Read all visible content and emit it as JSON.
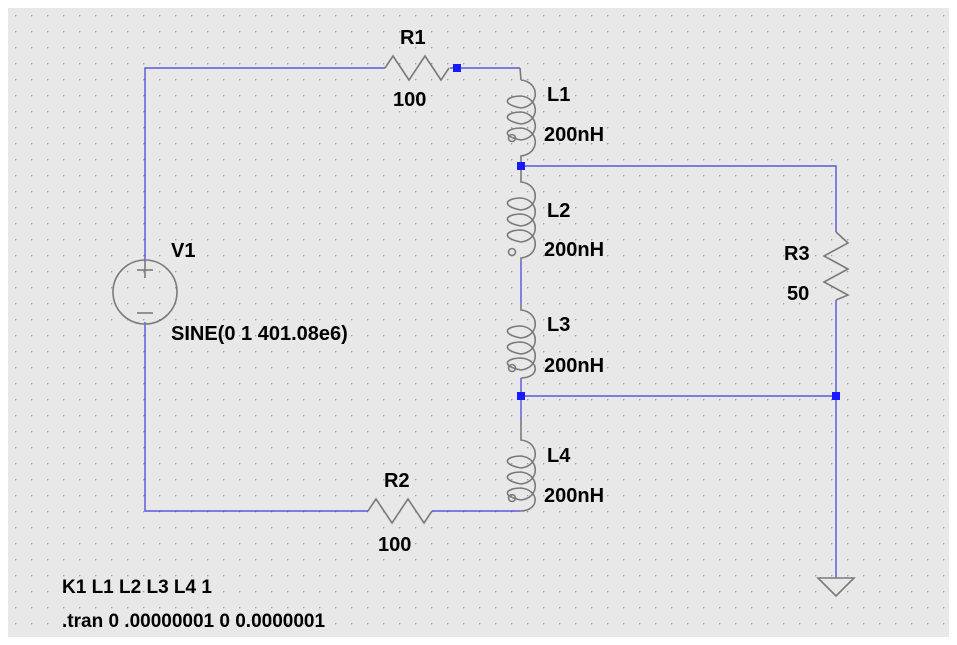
{
  "schematic": {
    "colors": {
      "background": "#e8e8e8",
      "grid_dot": "#9a9aa0",
      "wire": "#3b3bd9",
      "component": "#7a7a7a",
      "junction": "#1a1aff",
      "text": "#000000"
    },
    "components": {
      "r1": {
        "name": "R1",
        "value": "100"
      },
      "r2": {
        "name": "R2",
        "value": "100"
      },
      "r3": {
        "name": "R3",
        "value": "50"
      },
      "l1": {
        "name": "L1",
        "value": "200nH"
      },
      "l2": {
        "name": "L2",
        "value": "200nH"
      },
      "l3": {
        "name": "L3",
        "value": "200nH"
      },
      "l4": {
        "name": "L4",
        "value": "200nH"
      },
      "v1": {
        "name": "V1",
        "value": "SINE(0 1 401.08e6)"
      }
    },
    "directives": {
      "coupling": "K1 L1 L2 L3 L4 1",
      "tran": ".tran 0 .00000001 0 0.0000001"
    }
  }
}
